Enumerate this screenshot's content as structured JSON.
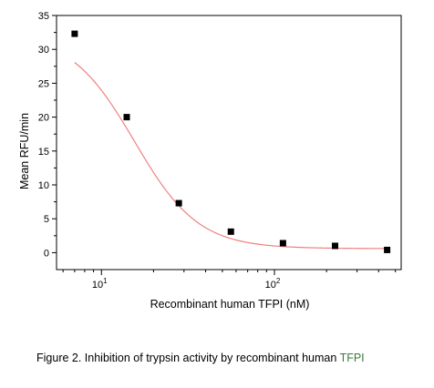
{
  "chart_data": {
    "type": "scatter",
    "title": "",
    "xlabel": "Recombinant human TFPI (nM)",
    "ylabel": "Mean RFU/min",
    "x_scale": "log",
    "xlim": [
      5.5,
      540
    ],
    "ylim": [
      -2.5,
      35
    ],
    "y_ticks": [
      0,
      5,
      10,
      15,
      20,
      25,
      30,
      35
    ],
    "x_ticks": [
      {
        "value": 10,
        "base": "10",
        "exp": "1"
      },
      {
        "value": 100,
        "base": "10",
        "exp": "2"
      }
    ],
    "grid": false,
    "series": [
      {
        "marker": "square",
        "color": "#000000",
        "x": [
          7,
          14,
          28,
          56,
          112,
          224,
          448
        ],
        "y": [
          32.3,
          20.0,
          7.3,
          3.1,
          1.4,
          1.0,
          0.4
        ]
      }
    ],
    "fit_curve": {
      "color": "#f08080",
      "model": "logistic",
      "top": 32.3,
      "bottom": 0.6,
      "ec50": 15.5,
      "hill": 2.35
    }
  },
  "caption": {
    "main": "Figure 2. Inhibition of trypsin activity by recombinant human ",
    "highlight": "TFPI"
  }
}
